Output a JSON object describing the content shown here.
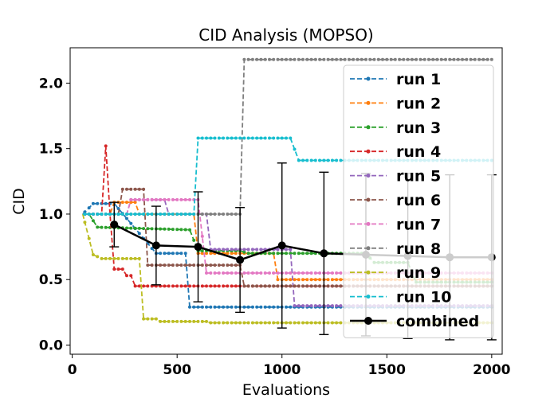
{
  "chart_data": {
    "type": "line",
    "title": "CID Analysis (MOPSO)",
    "xlabel": "Evaluations",
    "ylabel": "CID",
    "xlim": [
      -10,
      2050
    ],
    "ylim": [
      -0.07,
      2.27
    ],
    "xticks": [
      0,
      500,
      1000,
      1500,
      2000
    ],
    "yticks": [
      0.0,
      0.5,
      1.0,
      1.5,
      2.0
    ],
    "xtick_labels": [
      "0",
      "500",
      "1000",
      "1500",
      "2000"
    ],
    "ytick_labels": [
      "0.0",
      "0.5",
      "1.0",
      "1.5",
      "2.0"
    ],
    "grid": false,
    "legend_position": "right",
    "series": [
      {
        "name": "run 1",
        "color": "#1f77b4",
        "style": "dashed",
        "points": [
          [
            50,
            1.0
          ],
          [
            100,
            1.08
          ],
          [
            200,
            1.08
          ],
          [
            400,
            0.7
          ],
          [
            540,
            0.7
          ],
          [
            560,
            0.29
          ],
          [
            1200,
            0.29
          ],
          [
            2000,
            0.29
          ]
        ]
      },
      {
        "name": "run 2",
        "color": "#ff7f0e",
        "style": "dashed",
        "points": [
          [
            50,
            1.0
          ],
          [
            180,
            1.0
          ],
          [
            200,
            1.09
          ],
          [
            300,
            1.09
          ],
          [
            320,
            1.0
          ],
          [
            580,
            1.0
          ],
          [
            600,
            0.7
          ],
          [
            960,
            0.7
          ],
          [
            980,
            0.5
          ],
          [
            2000,
            0.5
          ]
        ]
      },
      {
        "name": "run 3",
        "color": "#2ca02c",
        "style": "dashed",
        "points": [
          [
            50,
            1.0
          ],
          [
            80,
            1.0
          ],
          [
            120,
            0.9
          ],
          [
            560,
            0.88
          ],
          [
            600,
            0.72
          ],
          [
            800,
            0.72
          ],
          [
            840,
            0.7
          ],
          [
            1400,
            0.7
          ],
          [
            1440,
            0.63
          ],
          [
            1600,
            0.63
          ],
          [
            1640,
            0.48
          ],
          [
            2000,
            0.48
          ]
        ]
      },
      {
        "name": "run 4",
        "color": "#d62728",
        "style": "dashed",
        "points": [
          [
            50,
            1.0
          ],
          [
            140,
            1.0
          ],
          [
            160,
            1.52
          ],
          [
            180,
            1.0
          ],
          [
            200,
            0.58
          ],
          [
            240,
            0.58
          ],
          [
            260,
            0.53
          ],
          [
            280,
            0.53
          ],
          [
            300,
            0.45
          ],
          [
            2000,
            0.45
          ]
        ]
      },
      {
        "name": "run 5",
        "color": "#9467bd",
        "style": "dashed",
        "points": [
          [
            50,
            1.0
          ],
          [
            260,
            1.0
          ],
          [
            280,
            1.11
          ],
          [
            440,
            1.11
          ],
          [
            460,
            1.0
          ],
          [
            640,
            1.0
          ],
          [
            660,
            0.73
          ],
          [
            1040,
            0.73
          ],
          [
            1060,
            0.3
          ],
          [
            2000,
            0.3
          ]
        ]
      },
      {
        "name": "run 6",
        "color": "#8c564b",
        "style": "dashed",
        "points": [
          [
            50,
            1.0
          ],
          [
            220,
            1.0
          ],
          [
            240,
            1.19
          ],
          [
            340,
            1.19
          ],
          [
            360,
            0.61
          ],
          [
            800,
            0.61
          ],
          [
            820,
            0.45
          ],
          [
            2000,
            0.45
          ]
        ]
      },
      {
        "name": "run 7",
        "color": "#e377c2",
        "style": "dashed",
        "points": [
          [
            50,
            1.0
          ],
          [
            260,
            1.0
          ],
          [
            280,
            1.11
          ],
          [
            600,
            1.11
          ],
          [
            640,
            0.55
          ],
          [
            2000,
            0.55
          ]
        ]
      },
      {
        "name": "run 8",
        "color": "#7f7f7f",
        "style": "dashed",
        "points": [
          [
            50,
            1.0
          ],
          [
            800,
            1.0
          ],
          [
            820,
            2.18
          ],
          [
            2000,
            2.18
          ]
        ]
      },
      {
        "name": "run 9",
        "color": "#bcbd22",
        "style": "dashed",
        "points": [
          [
            50,
            1.0
          ],
          [
            100,
            0.69
          ],
          [
            140,
            0.66
          ],
          [
            320,
            0.66
          ],
          [
            340,
            0.2
          ],
          [
            400,
            0.2
          ],
          [
            420,
            0.18
          ],
          [
            640,
            0.18
          ],
          [
            660,
            0.17
          ],
          [
            2000,
            0.17
          ]
        ]
      },
      {
        "name": "run 10",
        "color": "#17becf",
        "style": "dashed",
        "points": [
          [
            50,
            1.0
          ],
          [
            580,
            1.0
          ],
          [
            600,
            1.58
          ],
          [
            1040,
            1.58
          ],
          [
            1080,
            1.41
          ],
          [
            2000,
            1.41
          ]
        ]
      }
    ],
    "combined": {
      "name": "combined",
      "color": "#000000",
      "x": [
        200,
        400,
        600,
        800,
        1000,
        1200,
        1400,
        1600,
        1800,
        2000
      ],
      "y": [
        0.92,
        0.76,
        0.75,
        0.65,
        0.76,
        0.7,
        0.69,
        0.68,
        0.67,
        0.67
      ],
      "error": [
        0.17,
        0.3,
        0.42,
        0.4,
        0.63,
        0.62,
        0.62,
        0.63,
        0.63,
        0.63
      ]
    }
  }
}
